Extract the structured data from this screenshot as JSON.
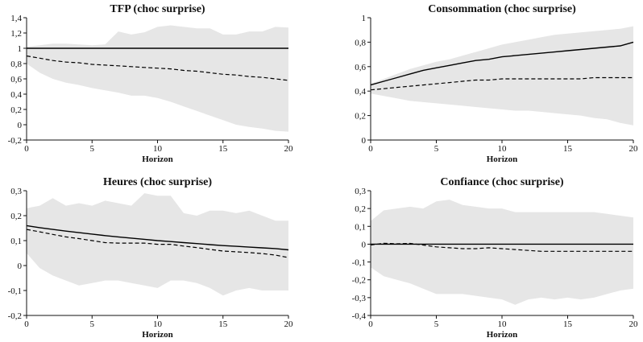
{
  "chart_data": [
    {
      "type": "area",
      "title": "TFP (choc surprise)",
      "xlabel": "Horizon",
      "ylabel": "",
      "xlim": [
        0,
        20
      ],
      "ylim": [
        -0.2,
        1.4
      ],
      "xticks": [
        0,
        5,
        10,
        15,
        20
      ],
      "xtick_labels": [
        "0",
        "5",
        "10",
        "15",
        "20"
      ],
      "yticks": [
        -0.2,
        0,
        0.2,
        0.4,
        0.6,
        0.8,
        1,
        1.2,
        1.4
      ],
      "ytick_labels": [
        "-0,2",
        "0",
        "0,2",
        "0,4",
        "0,6",
        "0,8",
        "1",
        "1,2",
        "1,4"
      ],
      "x": [
        0,
        1,
        2,
        3,
        4,
        5,
        6,
        7,
        8,
        9,
        10,
        11,
        12,
        13,
        14,
        15,
        16,
        17,
        18,
        19,
        20
      ],
      "series": [
        {
          "style": "solid",
          "values": [
            1,
            1,
            1,
            1,
            1,
            1,
            1,
            1,
            1,
            1,
            1,
            1,
            1,
            1,
            1,
            1,
            1,
            1,
            1,
            1,
            1
          ]
        },
        {
          "style": "dashed",
          "values": [
            0.9,
            0.87,
            0.84,
            0.82,
            0.81,
            0.79,
            0.78,
            0.77,
            0.76,
            0.75,
            0.74,
            0.73,
            0.71,
            0.7,
            0.68,
            0.66,
            0.65,
            0.63,
            0.62,
            0.6,
            0.58
          ]
        }
      ],
      "band": {
        "upper": [
          1.02,
          1.04,
          1.06,
          1.06,
          1.05,
          1.04,
          1.05,
          1.22,
          1.18,
          1.21,
          1.28,
          1.3,
          1.28,
          1.26,
          1.26,
          1.18,
          1.18,
          1.22,
          1.22,
          1.28,
          1.27
        ],
        "lower": [
          0.8,
          0.68,
          0.6,
          0.55,
          0.52,
          0.48,
          0.45,
          0.42,
          0.38,
          0.38,
          0.35,
          0.3,
          0.24,
          0.18,
          0.12,
          0.06,
          0.0,
          -0.03,
          -0.05,
          -0.08,
          -0.09
        ]
      }
    },
    {
      "type": "area",
      "title": "Consommation (choc surprise)",
      "xlabel": "Horizon",
      "ylabel": "",
      "xlim": [
        0,
        20
      ],
      "ylim": [
        0,
        1
      ],
      "xticks": [
        0,
        5,
        10,
        15,
        20
      ],
      "xtick_labels": [
        "0",
        "5",
        "10",
        "15",
        "20"
      ],
      "yticks": [
        0,
        0.2,
        0.4,
        0.6,
        0.8,
        1
      ],
      "ytick_labels": [
        "0",
        "0,2",
        "0,4",
        "0,6",
        "0,8",
        "1"
      ],
      "x": [
        0,
        1,
        2,
        3,
        4,
        5,
        6,
        7,
        8,
        9,
        10,
        11,
        12,
        13,
        14,
        15,
        16,
        17,
        18,
        19,
        20
      ],
      "series": [
        {
          "style": "solid",
          "values": [
            0.45,
            0.48,
            0.51,
            0.54,
            0.57,
            0.59,
            0.61,
            0.63,
            0.65,
            0.66,
            0.68,
            0.69,
            0.7,
            0.71,
            0.72,
            0.73,
            0.74,
            0.75,
            0.76,
            0.77,
            0.8
          ]
        },
        {
          "style": "dashed",
          "values": [
            0.41,
            0.42,
            0.43,
            0.44,
            0.45,
            0.46,
            0.47,
            0.48,
            0.49,
            0.49,
            0.5,
            0.5,
            0.5,
            0.5,
            0.5,
            0.5,
            0.5,
            0.51,
            0.51,
            0.51,
            0.51
          ]
        }
      ],
      "band": {
        "upper": [
          0.46,
          0.5,
          0.54,
          0.58,
          0.61,
          0.64,
          0.66,
          0.69,
          0.72,
          0.75,
          0.78,
          0.8,
          0.82,
          0.84,
          0.86,
          0.87,
          0.88,
          0.89,
          0.9,
          0.91,
          0.93
        ],
        "lower": [
          0.38,
          0.36,
          0.34,
          0.32,
          0.31,
          0.3,
          0.29,
          0.28,
          0.27,
          0.26,
          0.25,
          0.24,
          0.24,
          0.23,
          0.22,
          0.21,
          0.2,
          0.18,
          0.17,
          0.14,
          0.12
        ]
      }
    },
    {
      "type": "area",
      "title": "Heures (choc surprise)",
      "xlabel": "Horizon",
      "ylabel": "",
      "xlim": [
        0,
        20
      ],
      "ylim": [
        -0.2,
        0.3
      ],
      "xticks": [
        0,
        5,
        10,
        15,
        20
      ],
      "xtick_labels": [
        "0",
        "5",
        "10",
        "15",
        "20"
      ],
      "yticks": [
        -0.2,
        -0.1,
        0,
        0.1,
        0.2,
        0.3
      ],
      "ytick_labels": [
        "-0,2",
        "-0,1",
        "0",
        "0,1",
        "0,2",
        "0,3"
      ],
      "x": [
        0,
        1,
        2,
        3,
        4,
        5,
        6,
        7,
        8,
        9,
        10,
        11,
        12,
        13,
        14,
        15,
        16,
        17,
        18,
        19,
        20
      ],
      "series": [
        {
          "style": "solid",
          "values": [
            0.16,
            0.152,
            0.145,
            0.138,
            0.132,
            0.126,
            0.12,
            0.115,
            0.11,
            0.105,
            0.1,
            0.096,
            0.092,
            0.088,
            0.084,
            0.08,
            0.077,
            0.074,
            0.071,
            0.068,
            0.063
          ]
        },
        {
          "style": "dashed",
          "values": [
            0.145,
            0.135,
            0.125,
            0.115,
            0.108,
            0.1,
            0.092,
            0.09,
            0.09,
            0.09,
            0.085,
            0.085,
            0.078,
            0.072,
            0.065,
            0.058,
            0.055,
            0.052,
            0.048,
            0.042,
            0.032
          ]
        }
      ],
      "band": {
        "upper": [
          0.23,
          0.24,
          0.27,
          0.24,
          0.25,
          0.24,
          0.26,
          0.25,
          0.24,
          0.29,
          0.28,
          0.28,
          0.21,
          0.2,
          0.22,
          0.22,
          0.21,
          0.22,
          0.2,
          0.18,
          0.18
        ],
        "lower": [
          0.05,
          -0.01,
          -0.04,
          -0.06,
          -0.08,
          -0.07,
          -0.06,
          -0.06,
          -0.07,
          -0.08,
          -0.09,
          -0.06,
          -0.06,
          -0.07,
          -0.09,
          -0.12,
          -0.1,
          -0.09,
          -0.1,
          -0.1,
          -0.1
        ]
      }
    },
    {
      "type": "area",
      "title": "Confiance (choc surprise)",
      "xlabel": "Horizon",
      "ylabel": "",
      "xlim": [
        0,
        20
      ],
      "ylim": [
        -0.4,
        0.3
      ],
      "xticks": [
        0,
        5,
        10,
        15,
        20
      ],
      "xtick_labels": [
        "0",
        "5",
        "10",
        "15",
        "20"
      ],
      "yticks": [
        -0.4,
        -0.3,
        -0.2,
        -0.1,
        0,
        0.1,
        0.2,
        0.3
      ],
      "ytick_labels": [
        "-0,4",
        "-0,3",
        "-0,2",
        "-0,1",
        "0",
        "0,1",
        "0,2",
        "0,3"
      ],
      "x": [
        0,
        1,
        2,
        3,
        4,
        5,
        6,
        7,
        8,
        9,
        10,
        11,
        12,
        13,
        14,
        15,
        16,
        17,
        18,
        19,
        20
      ],
      "series": [
        {
          "style": "solid",
          "values": [
            0,
            0,
            0,
            0,
            0,
            0,
            0,
            0,
            0,
            0,
            0,
            0,
            0,
            0,
            0,
            0,
            0,
            0,
            0,
            0,
            0
          ]
        },
        {
          "style": "dashed",
          "values": [
            -0.005,
            0.005,
            0.002,
            0.004,
            -0.005,
            -0.015,
            -0.02,
            -0.025,
            -0.025,
            -0.02,
            -0.025,
            -0.03,
            -0.035,
            -0.04,
            -0.04,
            -0.04,
            -0.04,
            -0.04,
            -0.04,
            -0.04,
            -0.04
          ]
        }
      ],
      "band": {
        "upper": [
          0.13,
          0.19,
          0.2,
          0.21,
          0.2,
          0.24,
          0.25,
          0.22,
          0.21,
          0.2,
          0.2,
          0.18,
          0.18,
          0.18,
          0.18,
          0.18,
          0.18,
          0.18,
          0.17,
          0.16,
          0.15
        ],
        "lower": [
          -0.13,
          -0.18,
          -0.2,
          -0.22,
          -0.25,
          -0.28,
          -0.28,
          -0.28,
          -0.29,
          -0.3,
          -0.31,
          -0.34,
          -0.31,
          -0.3,
          -0.31,
          -0.3,
          -0.31,
          -0.3,
          -0.28,
          -0.26,
          -0.25
        ]
      }
    }
  ]
}
